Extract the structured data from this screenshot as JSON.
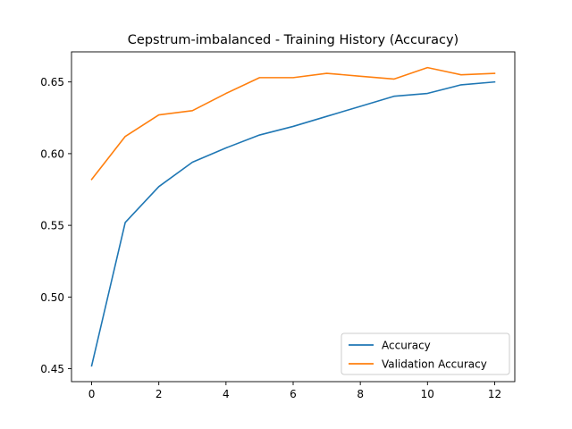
{
  "chart_data": {
    "type": "line",
    "title": "Cepstrum-imbalanced - Training History (Accuracy)",
    "xlabel": "",
    "ylabel": "",
    "xlim": [
      -0.6,
      12.6
    ],
    "ylim": [
      0.441,
      0.671
    ],
    "xticks": [
      0,
      2,
      4,
      6,
      8,
      10,
      12
    ],
    "yticks": [
      0.45,
      0.5,
      0.55,
      0.6,
      0.65
    ],
    "xtick_labels": [
      "0",
      "2",
      "4",
      "6",
      "8",
      "10",
      "12"
    ],
    "ytick_labels": [
      "0.45",
      "0.50",
      "0.55",
      "0.60",
      "0.65"
    ],
    "grid": false,
    "legend_position": "lower-right",
    "x": [
      0,
      1,
      2,
      3,
      4,
      5,
      6,
      7,
      8,
      9,
      10,
      11,
      12
    ],
    "series": [
      {
        "name": "Accuracy",
        "color": "#1f77b4",
        "values": [
          0.452,
          0.552,
          0.577,
          0.594,
          0.604,
          0.613,
          0.619,
          0.626,
          0.633,
          0.64,
          0.642,
          0.648,
          0.65
        ]
      },
      {
        "name": "Validation Accuracy",
        "color": "#ff7f0e",
        "values": [
          0.582,
          0.612,
          0.627,
          0.63,
          0.642,
          0.653,
          0.653,
          0.656,
          0.654,
          0.652,
          0.66,
          0.655,
          0.656
        ]
      }
    ]
  }
}
